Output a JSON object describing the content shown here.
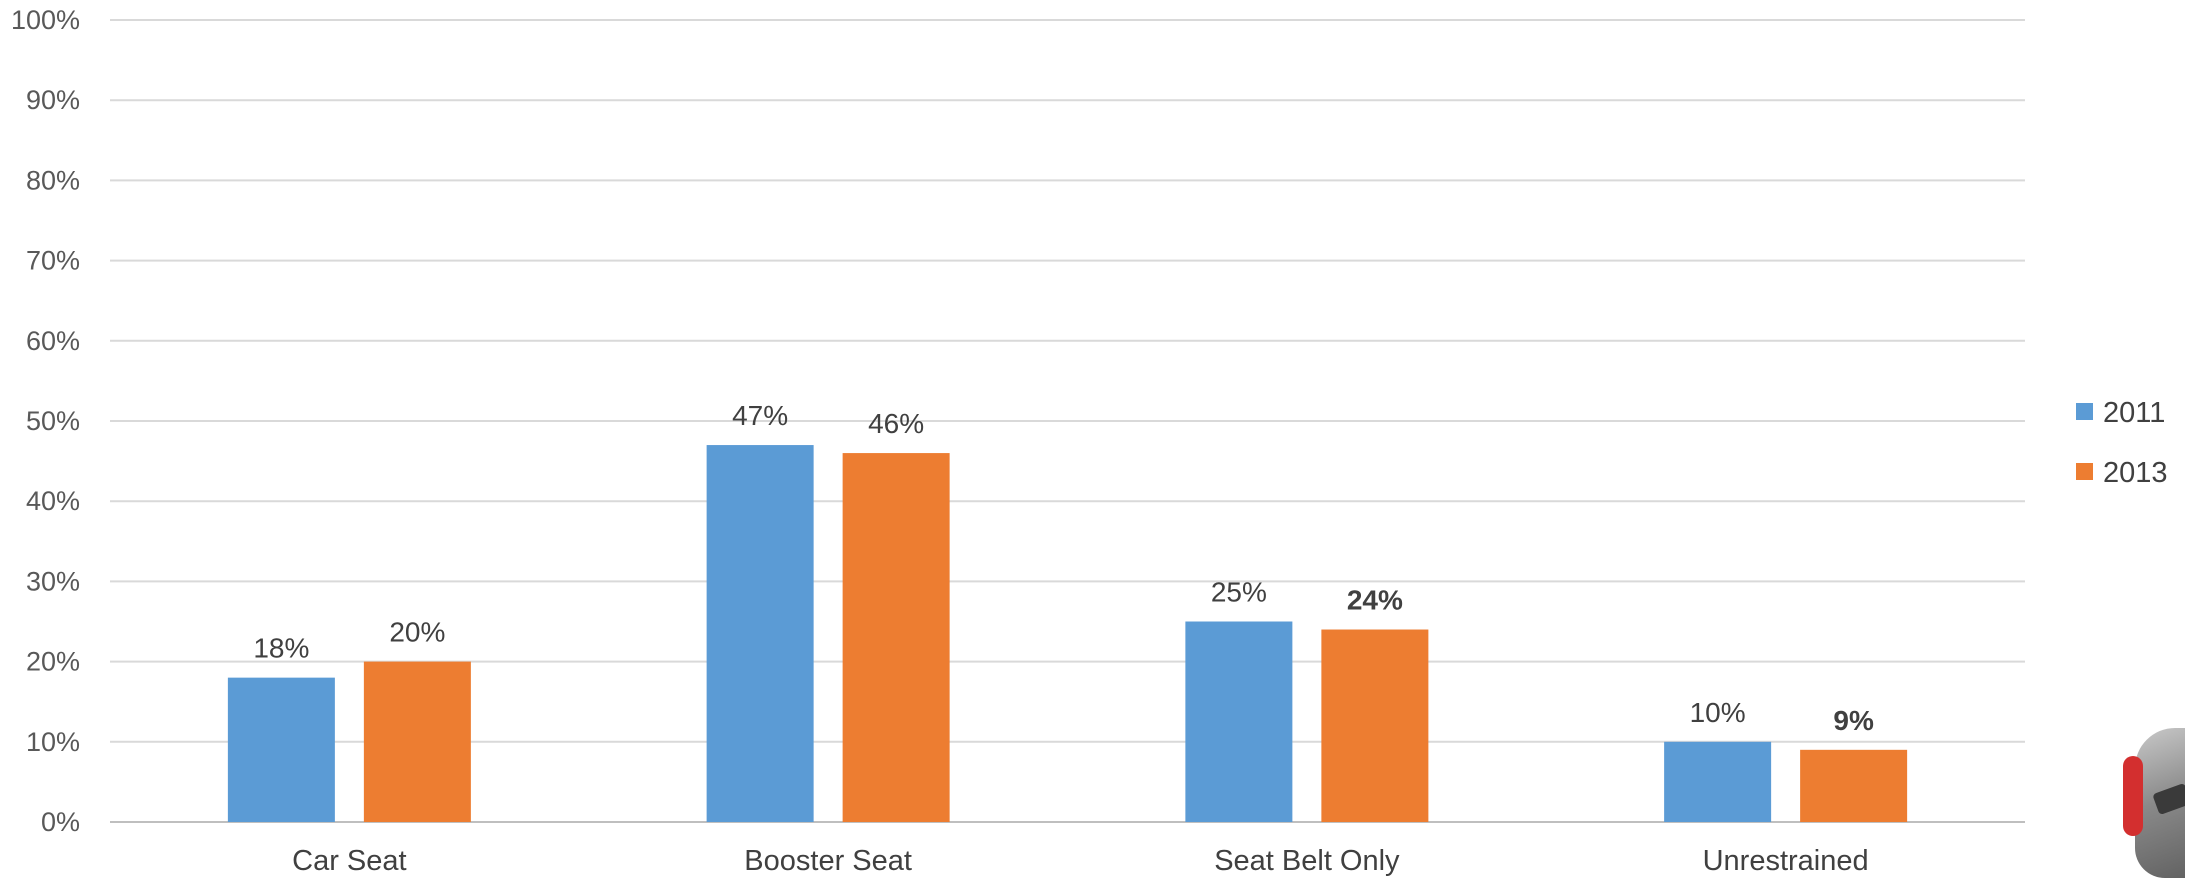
{
  "chart_data": {
    "type": "bar",
    "title": "",
    "xlabel": "",
    "ylabel": "",
    "categories": [
      "Car Seat",
      "Booster Seat",
      "Seat Belt Only",
      "Unrestrained"
    ],
    "series": [
      {
        "name": "2011",
        "values": [
          18,
          47,
          25,
          10
        ],
        "color": "#5b9bd5"
      },
      {
        "name": "2013",
        "values": [
          20,
          46,
          24,
          9
        ],
        "color": "#ed7d31"
      }
    ],
    "data_labels": [
      [
        "18%",
        "47%",
        "25%",
        "10%"
      ],
      [
        "20%",
        "46%",
        "24%",
        "9%"
      ]
    ],
    "bold_labels": [
      [
        false,
        false,
        false,
        false
      ],
      [
        false,
        false,
        true,
        true
      ]
    ],
    "ylim": [
      0,
      100
    ],
    "y_ticks": [
      0,
      10,
      20,
      30,
      40,
      50,
      60,
      70,
      80,
      90,
      100
    ],
    "y_tick_labels": [
      "0%",
      "10%",
      "20%",
      "30%",
      "40%",
      "50%",
      "60%",
      "70%",
      "80%",
      "90%",
      "100%"
    ],
    "grid": true,
    "legend_position": "right"
  },
  "decorations": {
    "corner_image_icon": "car-seat-product-icon"
  }
}
